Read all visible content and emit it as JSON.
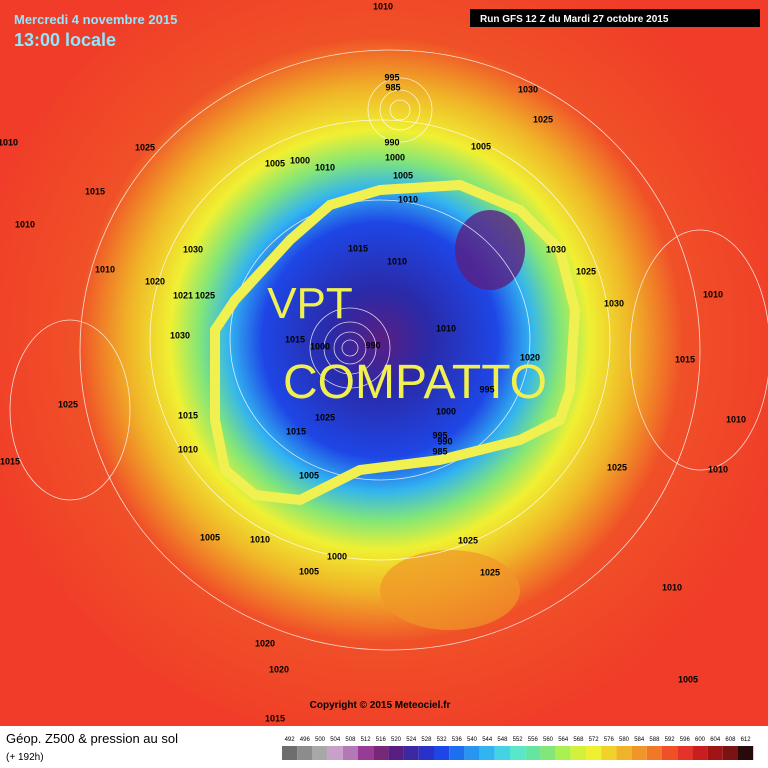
{
  "header": {
    "date": "Mercredi 4 novembre 2015",
    "time": "13:00 locale",
    "run": "Run GFS 12 Z du Mardi 27 octobre 2015"
  },
  "annotation": {
    "line1": "VPT",
    "line2": "COMPATTO"
  },
  "copyright": "Copyright © 2015 Meteociel.fr",
  "footer": {
    "title": "Géop. Z500 & pression au sol",
    "lead": "(+ 192h)"
  },
  "colorbar": {
    "labels": [
      492,
      496,
      500,
      504,
      508,
      512,
      516,
      520,
      524,
      528,
      532,
      536,
      540,
      544,
      548,
      552,
      556,
      560,
      564,
      568,
      572,
      576,
      580,
      584,
      588,
      592,
      596,
      600,
      604,
      608,
      612
    ],
    "colors": [
      "#6e6e6e",
      "#8c8c8c",
      "#a8a8a8",
      "#c8a0c8",
      "#b478b4",
      "#963c96",
      "#782878",
      "#5a1e82",
      "#3c28a0",
      "#2832c8",
      "#1e46e6",
      "#1e6ef0",
      "#2896f0",
      "#32b4f0",
      "#46d2e6",
      "#5ae6c8",
      "#64e6a0",
      "#82e678",
      "#aaf050",
      "#d2f03c",
      "#f0f032",
      "#f0d228",
      "#f0b428",
      "#f09628",
      "#f07828",
      "#f05028",
      "#e63228",
      "#c81e1e",
      "#a01414",
      "#781414",
      "#280a0a"
    ]
  },
  "pressure_labels": [
    1010,
    995,
    985,
    1030,
    1025,
    1010,
    1025,
    1005,
    1000,
    1010,
    990,
    1000,
    1005,
    1005,
    1015,
    1010,
    1010,
    1030,
    1015,
    1010,
    1030,
    1025,
    1010,
    1020,
    1021,
    1025,
    1030,
    1010,
    1030,
    1015,
    1000,
    990,
    1010,
    1020,
    1015,
    1025,
    1015,
    1025,
    1000,
    1010,
    1015,
    995,
    990,
    985,
    995,
    1010,
    1015,
    1005,
    1025,
    1010,
    1005,
    1010,
    1025,
    1000,
    1005,
    1025,
    1010,
    1020,
    1020,
    1005,
    1015
  ]
}
